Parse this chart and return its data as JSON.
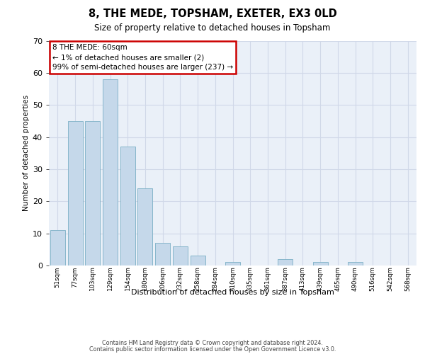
{
  "title": "8, THE MEDE, TOPSHAM, EXETER, EX3 0LD",
  "subtitle": "Size of property relative to detached houses in Topsham",
  "xlabel": "Distribution of detached houses by size in Topsham",
  "ylabel": "Number of detached properties",
  "categories": [
    "51sqm",
    "77sqm",
    "103sqm",
    "129sqm",
    "154sqm",
    "180sqm",
    "206sqm",
    "232sqm",
    "258sqm",
    "284sqm",
    "310sqm",
    "335sqm",
    "361sqm",
    "387sqm",
    "413sqm",
    "439sqm",
    "465sqm",
    "490sqm",
    "516sqm",
    "542sqm",
    "568sqm"
  ],
  "values": [
    11,
    45,
    45,
    58,
    37,
    24,
    7,
    6,
    3,
    0,
    1,
    0,
    0,
    2,
    0,
    1,
    0,
    1,
    0,
    0,
    0
  ],
  "bar_color": "#c5d8ea",
  "bar_edge_color": "#7aafc5",
  "annotation_box_text": "8 THE MEDE: 60sqm\n← 1% of detached houses are smaller (2)\n99% of semi-detached houses are larger (237) →",
  "annotation_box_color": "#ffffff",
  "annotation_box_edge_color": "#cc0000",
  "ylim": [
    0,
    70
  ],
  "yticks": [
    0,
    10,
    20,
    30,
    40,
    50,
    60,
    70
  ],
  "grid_color": "#d0d8e8",
  "background_color": "#eaf0f8",
  "footer_line1": "Contains HM Land Registry data © Crown copyright and database right 2024.",
  "footer_line2": "Contains public sector information licensed under the Open Government Licence v3.0."
}
